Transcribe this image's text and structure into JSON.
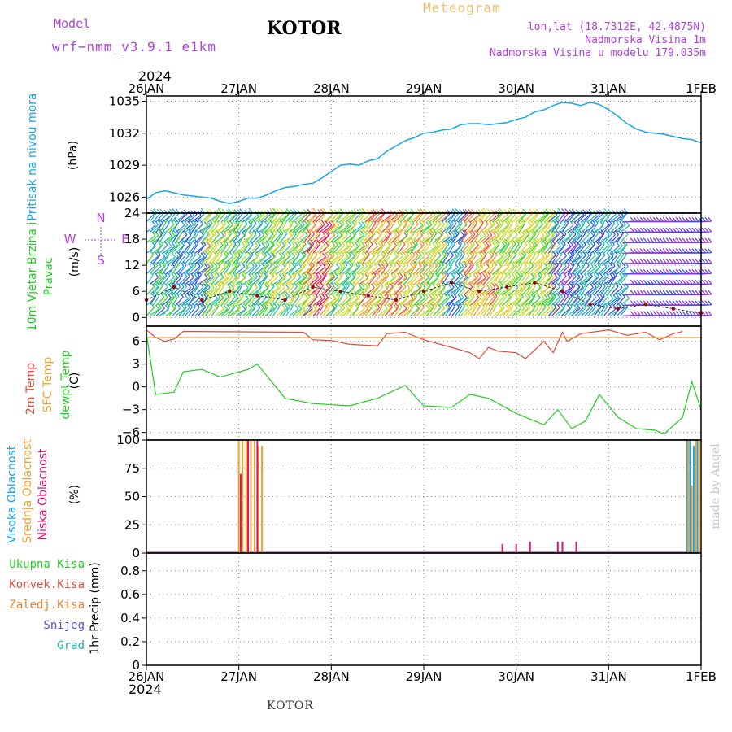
{
  "header": {
    "model_label": "Model",
    "model_name": "wrf−nmm_v3.9.1  e1km",
    "station_title": "KOTOR",
    "meteogram_label": "Meteogram",
    "lonlat": "lon,lat (18.7312E, 42.4875N)",
    "altitude": "Nadmorska Visina 1m",
    "model_altitude": "Nadmorska Visina u modelu 179.035m",
    "bottom_station": "KOTOR",
    "year_top": "2024",
    "year_bottom": "2024",
    "watermark": "made by Angel"
  },
  "colors": {
    "pressure": "#1aa6e6",
    "temp2m": "#e84a3a",
    "sfc_temp": "#f0a030",
    "dewpoint": "#22cc22",
    "high_cloud": "#1aa6e6",
    "mid_cloud": "#f0a030",
    "low_cloud": "#e0107a",
    "title_purple": "#b040e0",
    "meteogram_orange": "#f0c070"
  },
  "chart_data": [
    {
      "type": "line",
      "panel": "pressure",
      "title": "Pritisak na nivou mora",
      "ylabel": "(hPa)",
      "x_ticks": [
        "26JAN",
        "27JAN",
        "28JAN",
        "29JAN",
        "30JAN",
        "31JAN",
        "1FEB"
      ],
      "yticks": [
        1026,
        1029,
        1032,
        1035
      ],
      "ylim": [
        1024.5,
        1035.5
      ],
      "series": [
        {
          "values": [
            [
              0,
              1025.8
            ],
            [
              0.1,
              1026.4
            ],
            [
              0.2,
              1026.6
            ],
            [
              0.3,
              1026.4
            ],
            [
              0.4,
              1026.2
            ],
            [
              0.5,
              1026.1
            ],
            [
              0.6,
              1026.0
            ],
            [
              0.7,
              1025.9
            ],
            [
              0.8,
              1025.6
            ],
            [
              0.9,
              1025.4
            ],
            [
              1.0,
              1025.6
            ],
            [
              1.1,
              1025.9
            ],
            [
              1.2,
              1025.9
            ],
            [
              1.3,
              1026.2
            ],
            [
              1.4,
              1026.6
            ],
            [
              1.5,
              1026.9
            ],
            [
              1.6,
              1027.0
            ],
            [
              1.7,
              1027.2
            ],
            [
              1.8,
              1027.3
            ],
            [
              1.9,
              1027.8
            ],
            [
              2.0,
              1028.4
            ],
            [
              2.1,
              1029.0
            ],
            [
              2.2,
              1029.1
            ],
            [
              2.3,
              1029.0
            ],
            [
              2.4,
              1029.4
            ],
            [
              2.5,
              1029.6
            ],
            [
              2.6,
              1030.3
            ],
            [
              2.7,
              1030.8
            ],
            [
              2.8,
              1031.3
            ],
            [
              2.9,
              1031.6
            ],
            [
              3.0,
              1032.0
            ],
            [
              3.1,
              1032.1
            ],
            [
              3.2,
              1032.3
            ],
            [
              3.3,
              1032.4
            ],
            [
              3.4,
              1032.8
            ],
            [
              3.5,
              1032.9
            ],
            [
              3.6,
              1032.9
            ],
            [
              3.7,
              1032.8
            ],
            [
              3.8,
              1032.9
            ],
            [
              3.9,
              1033.0
            ],
            [
              4.0,
              1033.3
            ],
            [
              4.1,
              1033.5
            ],
            [
              4.2,
              1034.0
            ],
            [
              4.3,
              1034.2
            ],
            [
              4.4,
              1034.6
            ],
            [
              4.5,
              1034.9
            ],
            [
              4.6,
              1034.8
            ],
            [
              4.7,
              1034.6
            ],
            [
              4.8,
              1034.9
            ],
            [
              4.9,
              1034.7
            ],
            [
              5.0,
              1034.2
            ],
            [
              5.1,
              1033.6
            ],
            [
              5.2,
              1032.9
            ],
            [
              5.3,
              1032.4
            ],
            [
              5.4,
              1032.1
            ],
            [
              5.5,
              1032.0
            ],
            [
              5.6,
              1031.9
            ],
            [
              5.7,
              1031.7
            ],
            [
              5.8,
              1031.5
            ],
            [
              5.9,
              1031.4
            ],
            [
              6.0,
              1031.1
            ]
          ]
        }
      ]
    },
    {
      "type": "scatter",
      "panel": "wind",
      "title": "10m Vjetar Brzina i Pravac",
      "ylabel": "(m/s)",
      "compass": [
        "N",
        "W",
        "E",
        "S"
      ],
      "yticks": [
        0,
        6,
        12,
        18,
        24
      ],
      "ylim": [
        -2,
        24
      ],
      "series": [
        {
          "values": [
            [
              0,
              4
            ],
            [
              0.3,
              7
            ],
            [
              0.6,
              4
            ],
            [
              0.9,
              6
            ],
            [
              1.2,
              5
            ],
            [
              1.5,
              4
            ],
            [
              1.8,
              7
            ],
            [
              2.1,
              6
            ],
            [
              2.4,
              5
            ],
            [
              2.7,
              4
            ],
            [
              3.0,
              6
            ],
            [
              3.3,
              8
            ],
            [
              3.6,
              6
            ],
            [
              3.9,
              7
            ],
            [
              4.2,
              8
            ],
            [
              4.5,
              6
            ],
            [
              4.8,
              3
            ],
            [
              5.1,
              2
            ],
            [
              5.4,
              3
            ],
            [
              5.7,
              2
            ],
            [
              6.0,
              1
            ]
          ]
        }
      ]
    },
    {
      "type": "line",
      "panel": "temperature",
      "series_labels": [
        "2m Temp",
        "SFC Temp",
        "dewpt Temp"
      ],
      "ylabel": "(C)",
      "yticks": [
        -6,
        -3,
        0,
        3,
        6
      ],
      "ylim": [
        -7,
        8
      ],
      "series": [
        {
          "name": "2m Temp",
          "values": [
            [
              0,
              7.5
            ],
            [
              0.1,
              6.5
            ],
            [
              0.2,
              6.0
            ],
            [
              0.3,
              6.3
            ],
            [
              0.4,
              7.3
            ],
            [
              1.7,
              7.2
            ],
            [
              1.8,
              6.2
            ],
            [
              2.0,
              6.1
            ],
            [
              2.2,
              5.6
            ],
            [
              2.5,
              5.4
            ],
            [
              2.6,
              7.0
            ],
            [
              2.8,
              7.2
            ],
            [
              3.0,
              6.2
            ],
            [
              3.3,
              5.2
            ],
            [
              3.5,
              4.5
            ],
            [
              3.6,
              3.7
            ],
            [
              3.7,
              5.2
            ],
            [
              3.8,
              4.7
            ],
            [
              4.0,
              4.5
            ],
            [
              4.1,
              3.7
            ],
            [
              4.3,
              6.0
            ],
            [
              4.4,
              4.5
            ],
            [
              4.5,
              7.2
            ],
            [
              4.55,
              6.0
            ],
            [
              4.7,
              7.0
            ],
            [
              5.0,
              7.5
            ],
            [
              5.2,
              6.8
            ],
            [
              5.4,
              7.2
            ],
            [
              5.55,
              6.2
            ],
            [
              5.7,
              7.0
            ],
            [
              5.8,
              7.3
            ]
          ]
        },
        {
          "name": "SFC Temp",
          "values": [
            [
              0,
              6.5
            ],
            [
              6.0,
              6.5
            ]
          ]
        },
        {
          "name": "dewpt Temp",
          "values": [
            [
              0,
              7.0
            ],
            [
              0.1,
              -1.0
            ],
            [
              0.3,
              -0.7
            ],
            [
              0.4,
              2.0
            ],
            [
              0.6,
              2.3
            ],
            [
              0.8,
              1.3
            ],
            [
              1.1,
              2.3
            ],
            [
              1.2,
              3.0
            ],
            [
              1.3,
              1.5
            ],
            [
              1.5,
              -1.5
            ],
            [
              1.8,
              -2.2
            ],
            [
              2.2,
              -2.5
            ],
            [
              2.5,
              -1.5
            ],
            [
              2.8,
              0.2
            ],
            [
              3.0,
              -2.5
            ],
            [
              3.3,
              -2.7
            ],
            [
              3.5,
              -1.0
            ],
            [
              3.7,
              -1.5
            ],
            [
              4.0,
              -3.5
            ],
            [
              4.3,
              -5.0
            ],
            [
              4.45,
              -3.0
            ],
            [
              4.6,
              -5.5
            ],
            [
              4.75,
              -4.5
            ],
            [
              4.9,
              -1.0
            ],
            [
              5.1,
              -4.0
            ],
            [
              5.3,
              -5.5
            ],
            [
              5.5,
              -5.7
            ],
            [
              5.6,
              -6.2
            ],
            [
              5.8,
              -4.0
            ],
            [
              5.9,
              0.7
            ],
            [
              6.0,
              -3.0
            ]
          ]
        }
      ]
    },
    {
      "type": "bar",
      "panel": "cloud",
      "series_labels": [
        "Visoka Oblacnost",
        "Srednja Oblacnost",
        "Niska Oblacnost"
      ],
      "ylabel": "(%)",
      "yticks": [
        0,
        25,
        50,
        75,
        100
      ],
      "ylim": [
        0,
        100
      ],
      "series": [
        {
          "name": "Visoka Oblacnost",
          "values": [
            [
              5.85,
              100
            ],
            [
              5.88,
              100
            ],
            [
              5.92,
              95
            ],
            [
              5.96,
              100
            ]
          ]
        },
        {
          "name": "Srednja Oblacnost",
          "values": [
            [
              1.0,
              100
            ],
            [
              1.04,
              100
            ],
            [
              1.08,
              100
            ],
            [
              1.13,
              100
            ],
            [
              1.17,
              100
            ],
            [
              1.21,
              95
            ],
            [
              1.25,
              95
            ],
            [
              5.86,
              100
            ],
            [
              5.9,
              60
            ],
            [
              5.94,
              100
            ],
            [
              5.98,
              100
            ]
          ]
        },
        {
          "name": "Niska Oblacnost",
          "values": [
            [
              1.02,
              70
            ],
            [
              1.1,
              100
            ],
            [
              1.2,
              100
            ],
            [
              3.85,
              8
            ],
            [
              4.0,
              8
            ],
            [
              4.15,
              10
            ],
            [
              4.45,
              10
            ],
            [
              4.5,
              10
            ],
            [
              4.65,
              10
            ]
          ]
        }
      ]
    },
    {
      "type": "bar",
      "panel": "precip",
      "series_labels": [
        "Ukupna  Kisa",
        "Konvek.Kisa",
        "Zaledj.Kisa",
        "Snijeg",
        "Grad"
      ],
      "ylabel": "1hr Precip (mm)",
      "yticks": [
        0,
        0.2,
        0.4,
        0.6,
        0.8
      ],
      "ylim": [
        0,
        0.95
      ],
      "series": []
    }
  ],
  "label_colors": {
    "precip": [
      "#22cc22",
      "#e84a3a",
      "#f08030",
      "#5050e0",
      "#1ab0b0"
    ]
  }
}
